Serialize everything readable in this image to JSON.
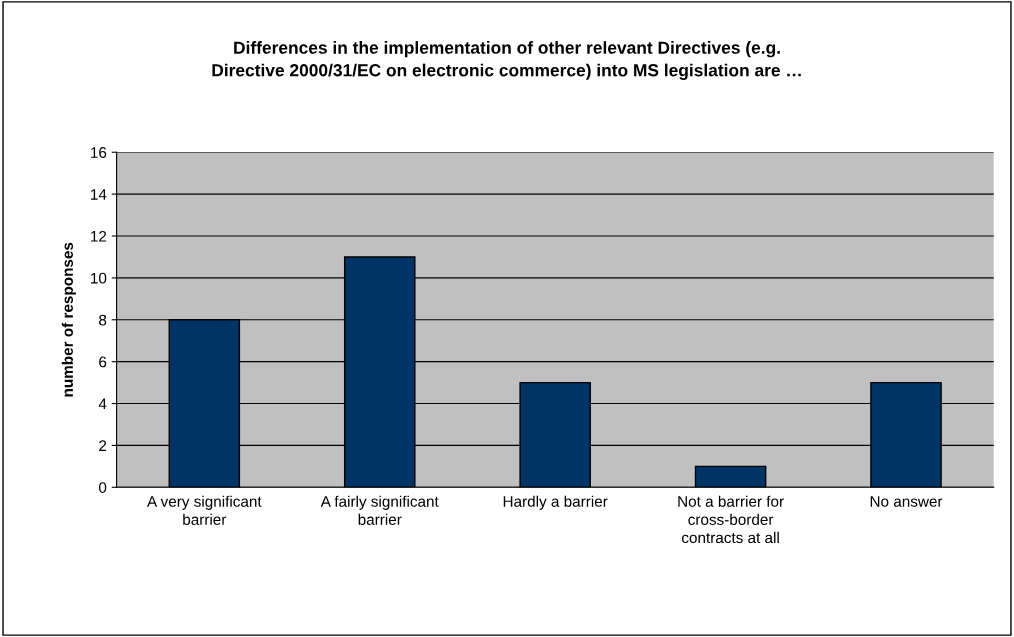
{
  "chart_data": {
    "type": "bar",
    "title": "Differences in the implementation of other relevant Directives (e.g. Directive 2000/31/EC on electronic commerce) into MS legislation are …",
    "ylabel": "number of responses",
    "categories": [
      "A very significant barrier",
      "A fairly significant barrier",
      "Hardly a barrier",
      "Not a barrier for cross-border contracts at all",
      "No answer"
    ],
    "values": [
      8,
      11,
      5,
      1,
      5
    ],
    "color": "#003366",
    "ylim": [
      0,
      16
    ],
    "yticks": [
      0,
      2,
      4,
      6,
      8,
      10,
      12,
      14,
      16
    ],
    "grid": "y",
    "legend": false
  }
}
